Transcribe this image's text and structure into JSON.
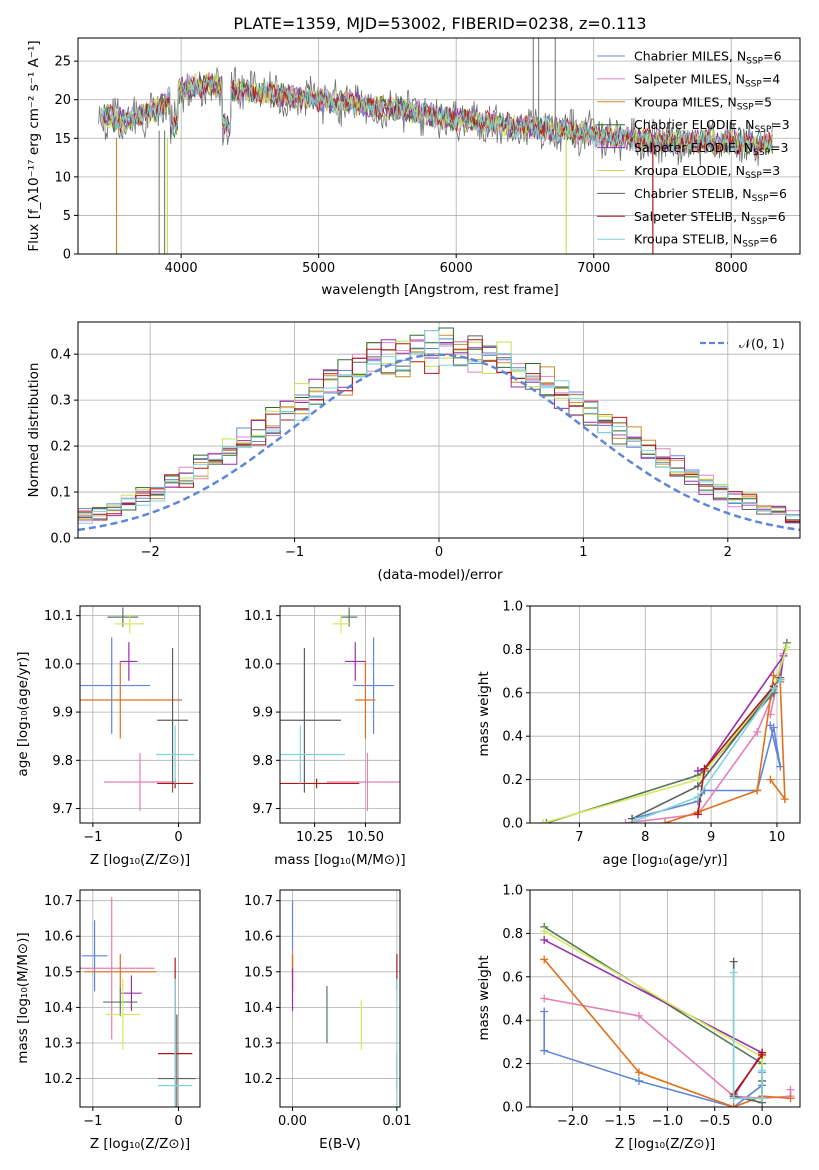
{
  "page_title": "PLATE=1359, MJD=53002, FIBERID=0238, z=0.113",
  "colors": {
    "series": [
      "#6688d8",
      "#e484bd",
      "#c88d2a",
      "#2d6b2d",
      "#9a2fa8",
      "#c4e05a",
      "#606060",
      "#b01818",
      "#7fd4dc"
    ],
    "panel_d": [
      "#5f86d8",
      "#e47fb7",
      "#e0701c",
      "#5a7a5a",
      "#9a2fa8",
      "#d4ea60",
      "#606060",
      "#b01818",
      "#7fd4dc"
    ]
  },
  "chart_data": [
    {
      "type": "line",
      "id": "spectrum",
      "title": "PLATE=1359, MJD=53002, FIBERID=0238, z=0.113",
      "xlabel": "wavelength [Angstrom, rest frame]",
      "ylabel": "Flux [f_λ10⁻¹⁷ erg cm⁻² s⁻¹ A⁻¹]",
      "xlim": [
        3250,
        8500
      ],
      "ylim": [
        0,
        28
      ],
      "xticks": [
        "4000",
        "5000",
        "6000",
        "7000",
        "8000"
      ],
      "yticks": [
        "0",
        "5",
        "10",
        "15",
        "20",
        "25"
      ],
      "legend_position": "top-right",
      "series": [
        {
          "name": "Chabrier MILES, N_SSP=6",
          "legend": "Chabrier MILES, N",
          "legend_sub": "SSP",
          "legend_val": "=6"
        },
        {
          "name": "Salpeter MILES, N_SSP=4",
          "legend": "Salpeter MILES, N",
          "legend_sub": "SSP",
          "legend_val": "=4"
        },
        {
          "name": "Kroupa MILES, N_SSP=5",
          "legend": "Kroupa MILES, N",
          "legend_sub": "SSP",
          "legend_val": "=5"
        },
        {
          "name": "Chabrier ELODIE, N_SSP=3",
          "legend": "Chabrier ELODIE, N",
          "legend_sub": "SSP",
          "legend_val": "=3"
        },
        {
          "name": "Salpeter ELODIE, N_SSP=3",
          "legend": "Salpeter ELODIE, N",
          "legend_sub": "SSP",
          "legend_val": "=3"
        },
        {
          "name": "Kroupa ELODIE, N_SSP=3",
          "legend": "Kroupa ELODIE, N",
          "legend_sub": "SSP",
          "legend_val": "=3"
        },
        {
          "name": "Chabrier STELIB, N_SSP=6",
          "legend": "Chabrier STELIB, N",
          "legend_sub": "SSP",
          "legend_val": "=6"
        },
        {
          "name": "Salpeter STELIB, N_SSP=6",
          "legend": "Salpeter STELIB, N",
          "legend_sub": "SSP",
          "legend_val": "=6"
        },
        {
          "name": "Kroupa STELIB, N_SSP=6",
          "legend": "Kroupa STELIB, N",
          "legend_sub": "SSP",
          "legend_val": "=6"
        }
      ],
      "continuum": [
        [
          3400,
          18
        ],
        [
          3600,
          17.2
        ],
        [
          3800,
          18.5
        ],
        [
          4000,
          21.5
        ],
        [
          4200,
          22
        ],
        [
          4500,
          21
        ],
        [
          5000,
          20
        ],
        [
          5500,
          19
        ],
        [
          6000,
          17.5
        ],
        [
          6500,
          16.5
        ],
        [
          7000,
          15.5
        ],
        [
          7500,
          14.5
        ],
        [
          8000,
          14.5
        ],
        [
          8300,
          14.3
        ]
      ],
      "observed_spikes": [
        [
          3840,
          0
        ],
        [
          3880,
          0
        ],
        [
          6560,
          28
        ],
        [
          6600,
          28
        ],
        [
          6720,
          28
        ]
      ],
      "edge_dropouts": [
        [
          3530,
          0
        ],
        [
          3900,
          0
        ],
        [
          6800,
          0
        ],
        [
          7430,
          0
        ]
      ]
    },
    {
      "type": "line",
      "id": "residuals",
      "xlabel": "(data-model)/error",
      "ylabel": "Normed distribution",
      "xlim": [
        -2.5,
        2.5
      ],
      "ylim": [
        0,
        0.47
      ],
      "xticks": [
        "−2",
        "−1",
        "0",
        "1",
        "2"
      ],
      "yticks": [
        "0.0",
        "0.1",
        "0.2",
        "0.3",
        "0.4"
      ],
      "legend_position": "top-right",
      "reference": {
        "name": "𝒩(0, 1)",
        "mean": 0,
        "sigma": 1,
        "amplitude": 0.399
      },
      "bin_width": 0.1
    },
    {
      "type": "scatter",
      "id": "age_vs_Z",
      "xlabel": "Z [log₁₀(Z/Z⊙)]",
      "ylabel": "age  [log₁₀(age/yr)]",
      "xlim": [
        -1.15,
        0.25
      ],
      "ylim": [
        9.67,
        10.12
      ],
      "xticks": [
        "−1",
        "0"
      ],
      "yticks": [
        "9.7",
        "9.8",
        "9.9",
        "10.0",
        "10.1"
      ],
      "points": [
        {
          "x": -0.78,
          "y": 9.955,
          "xerr": 0.45,
          "yerr": 0.1
        },
        {
          "x": -0.45,
          "y": 9.755,
          "xerr": 0.42,
          "yerr": 0.06
        },
        {
          "x": -0.68,
          "y": 9.925,
          "xerr": 0.72,
          "yerr": 0.08
        },
        {
          "x": -0.65,
          "y": 10.097,
          "xerr": 0.18,
          "yerr": 0.02
        },
        {
          "x": -0.58,
          "y": 10.005,
          "xerr": 0.1,
          "yerr": 0.04
        },
        {
          "x": -0.57,
          "y": 10.083,
          "xerr": 0.17,
          "yerr": 0.02
        },
        {
          "x": -0.07,
          "y": 9.883,
          "xerr": 0.18,
          "yerr": 0.15
        },
        {
          "x": -0.04,
          "y": 9.752,
          "xerr": 0.21,
          "yerr": 0.01
        },
        {
          "x": -0.04,
          "y": 9.812,
          "xerr": 0.22,
          "yerr": 0.06
        }
      ]
    },
    {
      "type": "scatter",
      "id": "age_vs_mass",
      "xlabel": "mass [log₁₀(M/M⊙)]",
      "ylabel": "",
      "xlim": [
        10.08,
        10.67
      ],
      "ylim": [
        9.67,
        10.12
      ],
      "xticks": [
        "10.25",
        "10.50"
      ],
      "yticks": [
        "9.7",
        "9.8",
        "9.9",
        "10.0",
        "10.1"
      ],
      "points": [
        {
          "x": 10.54,
          "y": 9.955,
          "xerr": 0.1,
          "yerr": 0.1
        },
        {
          "x": 10.51,
          "y": 9.755,
          "xerr": 0.2,
          "yerr": 0.06
        },
        {
          "x": 10.5,
          "y": 9.925,
          "xerr": 0.05,
          "yerr": 0.08
        },
        {
          "x": 10.42,
          "y": 10.097,
          "xerr": 0.04,
          "yerr": 0.02
        },
        {
          "x": 10.45,
          "y": 10.005,
          "xerr": 0.05,
          "yerr": 0.04
        },
        {
          "x": 10.38,
          "y": 10.083,
          "xerr": 0.04,
          "yerr": 0.02
        },
        {
          "x": 10.2,
          "y": 9.883,
          "xerr": 0.18,
          "yerr": 0.15
        },
        {
          "x": 10.26,
          "y": 9.752,
          "xerr": 0.21,
          "yerr": 0.01
        },
        {
          "x": 10.18,
          "y": 9.812,
          "xerr": 0.22,
          "yerr": 0.06
        }
      ]
    },
    {
      "type": "line",
      "id": "mass_weight_vs_age",
      "xlabel": "age  [log₁₀(age/yr)]",
      "ylabel": "mass weight",
      "xlim": [
        6.25,
        10.35
      ],
      "ylim": [
        0,
        1
      ],
      "xticks": [
        "7",
        "8",
        "9",
        "10"
      ],
      "yticks": [
        "0.0",
        "0.2",
        "0.4",
        "0.6",
        "0.8",
        "1.0"
      ],
      "series": [
        {
          "points": [
            [
              7.8,
              0.02
            ],
            [
              8.8,
              0.1
            ],
            [
              8.9,
              0.15
            ],
            [
              9.7,
              0.15
            ],
            [
              9.95,
              0.44
            ],
            [
              10.05,
              0.26
            ],
            [
              9.9,
              0.45
            ]
          ]
        },
        {
          "points": [
            [
              7.7,
              0.0
            ],
            [
              8.8,
              0.04
            ],
            [
              9.7,
              0.42
            ],
            [
              9.95,
              0.6
            ],
            [
              10.1,
              0.78
            ],
            [
              9.9,
              0.5
            ]
          ]
        },
        {
          "points": [
            [
              8.3,
              0.0
            ],
            [
              8.8,
              0.05
            ],
            [
              9.7,
              0.15
            ],
            [
              9.95,
              0.68
            ],
            [
              10.05,
              0.65
            ],
            [
              10.12,
              0.11
            ],
            [
              9.9,
              0.2
            ]
          ]
        },
        {
          "points": [
            [
              6.5,
              0.0
            ],
            [
              8.8,
              0.22
            ],
            [
              8.9,
              0.24
            ],
            [
              9.95,
              0.6
            ],
            [
              10.15,
              0.83
            ]
          ]
        },
        {
          "points": [
            [
              8.8,
              0.24
            ],
            [
              8.9,
              0.25
            ],
            [
              10.1,
              0.77
            ],
            [
              10.05,
              0.66
            ]
          ]
        },
        {
          "points": [
            [
              6.45,
              0.0
            ],
            [
              8.8,
              0.2
            ],
            [
              9.95,
              0.62
            ],
            [
              10.15,
              0.81
            ]
          ]
        },
        {
          "points": [
            [
              7.8,
              0.02
            ],
            [
              8.8,
              0.17
            ],
            [
              9.95,
              0.62
            ],
            [
              10.05,
              0.67
            ]
          ]
        },
        {
          "points": [
            [
              8.8,
              0.04
            ],
            [
              8.9,
              0.25
            ],
            [
              9.95,
              0.63
            ],
            [
              10.05,
              0.66
            ]
          ]
        },
        {
          "points": [
            [
              7.85,
              0.01
            ],
            [
              8.8,
              0.12
            ],
            [
              9.95,
              0.62
            ],
            [
              10.05,
              0.66
            ]
          ]
        }
      ]
    },
    {
      "type": "scatter",
      "id": "mass_vs_Z",
      "xlabel": "Z [log₁₀(Z/Z⊙)]",
      "ylabel": "mass [log₁₀(M/M⊙)]",
      "xlim": [
        -1.15,
        0.25
      ],
      "ylim": [
        10.12,
        10.73
      ],
      "xticks": [
        "−1",
        "0"
      ],
      "yticks": [
        "10.2",
        "10.3",
        "10.4",
        "10.5",
        "10.6",
        "10.7"
      ],
      "points": [
        {
          "x": -0.98,
          "y": 10.545,
          "xerr": 0.15,
          "yerr": 0.1
        },
        {
          "x": -0.78,
          "y": 10.51,
          "xerr": 0.5,
          "yerr": 0.2
        },
        {
          "x": -0.68,
          "y": 10.5,
          "xerr": 0.42,
          "yerr": 0.05
        },
        {
          "x": -0.68,
          "y": 10.415,
          "xerr": 0.2,
          "yerr": 0.04
        },
        {
          "x": -0.55,
          "y": 10.44,
          "xerr": 0.12,
          "yerr": 0.05
        },
        {
          "x": -0.65,
          "y": 10.38,
          "xerr": 0.2,
          "yerr": 0.1
        },
        {
          "x": -0.02,
          "y": 10.2,
          "xerr": 0.22,
          "yerr": 0.18
        },
        {
          "x": -0.04,
          "y": 10.27,
          "xerr": 0.2,
          "yerr": 0.27
        },
        {
          "x": -0.04,
          "y": 10.18,
          "xerr": 0.2,
          "yerr": 0.3
        }
      ]
    },
    {
      "type": "scatter",
      "id": "mass_vs_ebv",
      "xlabel": "E(B-V)",
      "ylabel": "",
      "xlim": [
        -0.0012,
        0.0103
      ],
      "ylim": [
        10.12,
        10.73
      ],
      "xticks": [
        "0.00",
        "0.01"
      ],
      "yticks": [
        "10.2",
        "10.3",
        "10.4",
        "10.5",
        "10.6",
        "10.7"
      ],
      "points": [
        {
          "x": 0.0,
          "y": 10.6,
          "yerr": 0.1
        },
        {
          "x": 0.0,
          "y": 10.5,
          "yerr": 0.06
        },
        {
          "x": 0.0,
          "y": 10.5,
          "yerr": 0.05
        },
        {
          "x": 0.0033,
          "y": 10.38,
          "yerr": 0.08
        },
        {
          "x": 0.0,
          "y": 10.45,
          "yerr": 0.06
        },
        {
          "x": 0.0066,
          "y": 10.35,
          "yerr": 0.07
        },
        {
          "x": 0.01,
          "y": 10.22,
          "yerr": 0.05
        },
        {
          "x": 0.01,
          "y": 10.5,
          "yerr": 0.05
        },
        {
          "x": 0.01,
          "y": 10.3,
          "yerr": 0.18
        }
      ]
    },
    {
      "type": "line",
      "id": "mass_weight_vs_Z",
      "xlabel": "Z [log₁₀(Z/Z⊙)]",
      "ylabel": "mass weight",
      "xlim": [
        -2.45,
        0.4
      ],
      "ylim": [
        0,
        1
      ],
      "xticks": [
        "−2.0",
        "−1.5",
        "−1.0",
        "−0.5",
        "0.0"
      ],
      "yticks": [
        "0.0",
        "0.2",
        "0.4",
        "0.6",
        "0.8",
        "1.0"
      ],
      "series": [
        {
          "points": [
            [
              -2.3,
              0.44
            ],
            [
              -2.3,
              0.26
            ],
            [
              -1.3,
              0.12
            ],
            [
              -0.3,
              0.0
            ],
            [
              0.0,
              0.1
            ],
            [
              0.0,
              0.16
            ]
          ]
        },
        {
          "points": [
            [
              -2.3,
              0.5
            ],
            [
              -1.3,
              0.42
            ],
            [
              -0.3,
              0.05
            ],
            [
              0.0,
              0.04
            ],
            [
              0.3,
              0.05
            ],
            [
              0.3,
              0.08
            ]
          ]
        },
        {
          "points": [
            [
              -2.3,
              0.68
            ],
            [
              -1.3,
              0.16
            ],
            [
              -0.3,
              0.0
            ],
            [
              0.0,
              0.05
            ],
            [
              0.3,
              0.04
            ]
          ]
        },
        {
          "points": [
            [
              -2.3,
              0.83
            ],
            [
              0.0,
              0.2
            ],
            [
              0.0,
              0.04
            ],
            [
              -0.3,
              0.04
            ]
          ]
        },
        {
          "points": [
            [
              -2.3,
              0.77
            ],
            [
              0.0,
              0.25
            ],
            [
              -0.3,
              0.05
            ]
          ]
        },
        {
          "points": [
            [
              -2.3,
              0.81
            ],
            [
              0.0,
              0.23
            ],
            [
              0.0,
              0.02
            ]
          ]
        },
        {
          "points": [
            [
              -0.3,
              0.67
            ],
            [
              -0.3,
              0.05
            ],
            [
              0.0,
              0.02
            ],
            [
              0.0,
              0.12
            ]
          ]
        },
        {
          "points": [
            [
              -0.3,
              0.06
            ],
            [
              0.0,
              0.24
            ],
            [
              0.0,
              0.25
            ]
          ]
        },
        {
          "points": [
            [
              -0.3,
              0.62
            ],
            [
              -0.3,
              0.04
            ],
            [
              0.0,
              0.04
            ],
            [
              0.0,
              0.17
            ]
          ]
        }
      ]
    }
  ]
}
